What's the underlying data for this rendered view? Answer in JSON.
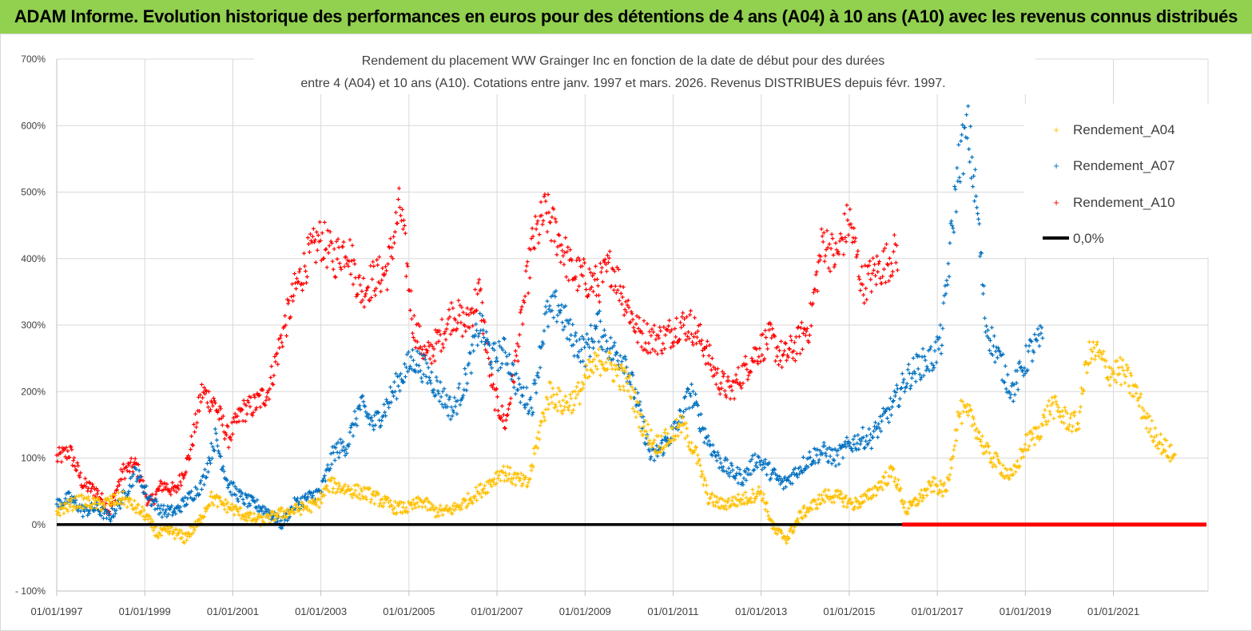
{
  "banner": {
    "title": "ADAM Informe. Evolution historique des performances en euros pour des détentions de 4 ans (A04) à 10 ans (A10) avec les revenus connus distribués"
  },
  "colors": {
    "banner_bg": "#92d050",
    "a04": "#ffc000",
    "a07": "#0070c0",
    "a10": "#ff0000",
    "zero": "#000000",
    "grid": "#d9d9d9"
  },
  "chart_data": {
    "type": "scatter",
    "title_line1": "Rendement du placement WW Grainger Inc en fonction de la date de début pour des durées",
    "title_line2": "entre 4 (A04) et 10 ans (A10). Cotations entre janv. 1997 et mars. 2026. Revenus DISTRIBUES depuis févr. 1997.",
    "xlabel": "",
    "ylabel": "",
    "xlim": [
      1997.0,
      2023.15
    ],
    "ylim": [
      -100,
      700
    ],
    "yticks": [
      -100,
      0,
      100,
      200,
      300,
      400,
      500,
      600,
      700
    ],
    "ytick_labels": [
      "- 100%",
      "0%",
      "100%",
      "200%",
      "300%",
      "400%",
      "500%",
      "600%",
      "700%"
    ],
    "xticks": [
      1997,
      1999,
      2001,
      2003,
      2005,
      2007,
      2009,
      2011,
      2013,
      2015,
      2017,
      2019,
      2021
    ],
    "xtick_labels": [
      "01/01/1997",
      "01/01/1999",
      "01/01/2001",
      "01/01/2003",
      "01/01/2005",
      "01/01/2007",
      "01/01/2009",
      "01/01/2011",
      "01/01/2013",
      "01/01/2015",
      "01/01/2017",
      "01/01/2019",
      "01/01/2021"
    ],
    "legend": [
      "Rendement_A04",
      "Rendement_A07",
      "Rendement_A10",
      "0,0%"
    ],
    "legend_position": "top-right",
    "series": [
      {
        "name": "Rendement_A04",
        "color_key": "a04",
        "end": 2022.4,
        "x": [
          1997.0,
          1997.5,
          1998.0,
          1998.5,
          1999.0,
          1999.3,
          1999.6,
          1999.9,
          2000.2,
          2000.5,
          2000.8,
          2001.1,
          2001.4,
          2001.7,
          2002.0,
          2002.3,
          2002.6,
          2002.9,
          2003.2,
          2003.5,
          2003.8,
          2004.1,
          2004.4,
          2004.7,
          2005.0,
          2005.3,
          2005.6,
          2005.9,
          2006.2,
          2006.5,
          2006.8,
          2007.1,
          2007.4,
          2007.7,
          2008.0,
          2008.2,
          2008.5,
          2008.8,
          2009.1,
          2009.4,
          2009.7,
          2010.0,
          2010.3,
          2010.6,
          2010.9,
          2011.2,
          2011.5,
          2011.8,
          2012.1,
          2012.4,
          2012.7,
          2013.0,
          2013.3,
          2013.6,
          2013.9,
          2014.2,
          2014.5,
          2014.8,
          2015.1,
          2015.4,
          2015.7,
          2016.0,
          2016.3,
          2016.6,
          2016.9,
          2017.2,
          2017.5,
          2017.8,
          2018.1,
          2018.4,
          2018.7,
          2019.0,
          2019.3,
          2019.6,
          2019.9,
          2020.2,
          2020.4,
          2020.6,
          2020.9,
          2021.2,
          2021.5,
          2021.8,
          2022.1,
          2022.4
        ],
        "y": [
          20,
          35,
          30,
          40,
          15,
          -15,
          -10,
          -20,
          0,
          40,
          30,
          20,
          10,
          5,
          15,
          20,
          25,
          30,
          60,
          55,
          50,
          45,
          35,
          25,
          25,
          35,
          20,
          20,
          30,
          45,
          60,
          80,
          70,
          60,
          150,
          200,
          180,
          190,
          230,
          250,
          230,
          210,
          150,
          120,
          130,
          150,
          110,
          40,
          30,
          35,
          40,
          50,
          -10,
          -20,
          15,
          30,
          45,
          40,
          30,
          40,
          60,
          80,
          20,
          40,
          60,
          50,
          170,
          160,
          110,
          90,
          70,
          120,
          140,
          180,
          160,
          150,
          250,
          260,
          230,
          230,
          200,
          150,
          120,
          100
        ]
      },
      {
        "name": "Rendement_A07",
        "color_key": "a07",
        "end": 2019.4,
        "x": [
          1997.0,
          1997.3,
          1997.6,
          1997.9,
          1998.2,
          1998.5,
          1998.8,
          1999.1,
          1999.4,
          1999.7,
          2000.0,
          2000.3,
          2000.6,
          2000.9,
          2001.2,
          2001.5,
          2001.8,
          2002.1,
          2002.4,
          2002.7,
          2003.0,
          2003.3,
          2003.6,
          2003.9,
          2004.2,
          2004.5,
          2004.8,
          2005.1,
          2005.4,
          2005.7,
          2006.0,
          2006.3,
          2006.6,
          2006.9,
          2007.2,
          2007.5,
          2007.8,
          2008.1,
          2008.4,
          2008.7,
          2009.0,
          2009.3,
          2009.6,
          2009.9,
          2010.2,
          2010.5,
          2010.8,
          2011.1,
          2011.4,
          2011.7,
          2012.0,
          2012.3,
          2012.6,
          2012.9,
          2013.2,
          2013.5,
          2013.8,
          2014.1,
          2014.4,
          2014.7,
          2015.0,
          2015.3,
          2015.5,
          2016.0,
          2016.3,
          2016.6,
          2016.9,
          2017.1,
          2017.3,
          2017.5,
          2017.7,
          2017.9,
          2018.1,
          2018.4,
          2018.7,
          2018.9,
          2019.1,
          2019.4
        ],
        "y": [
          30,
          40,
          20,
          25,
          10,
          40,
          80,
          40,
          20,
          20,
          40,
          60,
          130,
          60,
          40,
          30,
          20,
          0,
          30,
          40,
          50,
          110,
          120,
          180,
          150,
          180,
          220,
          250,
          230,
          200,
          170,
          220,
          300,
          250,
          260,
          200,
          180,
          310,
          330,
          280,
          260,
          300,
          260,
          250,
          180,
          100,
          120,
          150,
          200,
          140,
          100,
          80,
          70,
          100,
          80,
          60,
          80,
          100,
          110,
          100,
          120,
          130,
          130,
          180,
          220,
          240,
          250,
          280,
          420,
          550,
          590,
          480,
          300,
          250,
          200,
          230,
          260,
          280
        ]
      },
      {
        "name": "Rendement_A10",
        "color_key": "a10",
        "end": 2016.1,
        "x": [
          1997.0,
          1997.3,
          1997.6,
          1997.9,
          1998.2,
          1998.5,
          1998.8,
          1999.1,
          1999.4,
          1999.7,
          2000.0,
          2000.3,
          2000.6,
          2000.9,
          2001.2,
          2001.5,
          2001.8,
          2002.1,
          2002.4,
          2002.7,
          2003.0,
          2003.3,
          2003.6,
          2003.9,
          2004.2,
          2004.5,
          2004.8,
          2005.1,
          2005.4,
          2005.7,
          2006.0,
          2006.3,
          2006.6,
          2006.9,
          2007.2,
          2007.5,
          2007.8,
          2008.1,
          2008.4,
          2008.7,
          2009.0,
          2009.3,
          2009.6,
          2009.9,
          2010.2,
          2010.5,
          2010.8,
          2011.1,
          2011.4,
          2011.7,
          2012.0,
          2012.3,
          2012.6,
          2012.9,
          2013.2,
          2013.5,
          2013.8,
          2014.1,
          2014.4,
          2014.7,
          2015.0,
          2015.3,
          2015.6,
          2016.1
        ],
        "y": [
          100,
          110,
          60,
          50,
          20,
          80,
          90,
          30,
          60,
          50,
          100,
          200,
          180,
          130,
          170,
          180,
          200,
          280,
          350,
          400,
          430,
          400,
          420,
          350,
          370,
          380,
          480,
          300,
          250,
          280,
          320,
          300,
          350,
          200,
          150,
          280,
          420,
          470,
          430,
          380,
          370,
          360,
          390,
          340,
          290,
          280,
          280,
          300,
          300,
          270,
          220,
          200,
          230,
          260,
          280,
          250,
          270,
          300,
          430,
          400,
          460,
          360,
          380,
          410
        ]
      }
    ],
    "zero_line": {
      "value": 0,
      "color_key": "zero",
      "solid_until": 2016.2
    }
  }
}
